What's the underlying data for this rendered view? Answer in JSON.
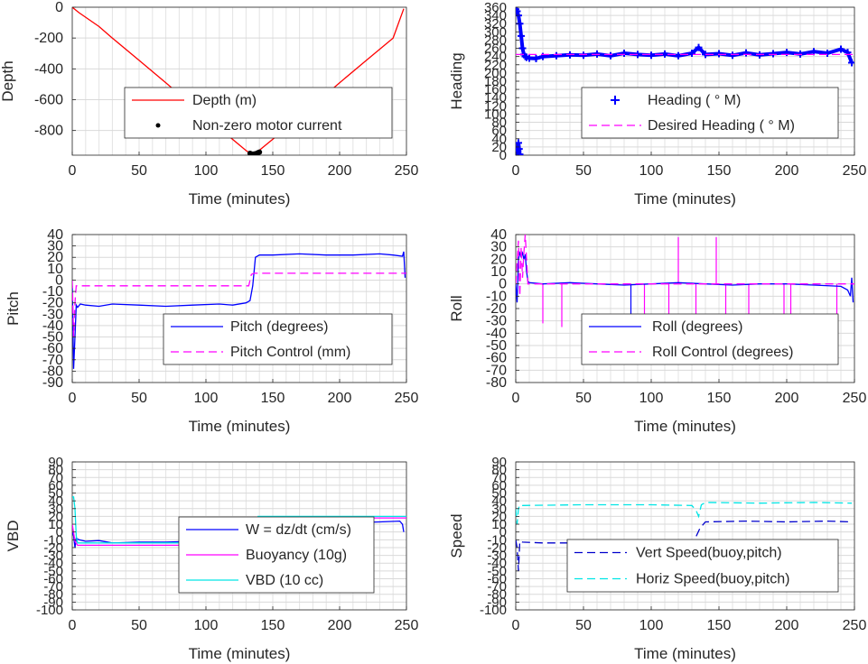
{
  "xlabel": "Time (minutes)",
  "chart_data": [
    {
      "id": "depth",
      "type": "line",
      "ylabel": "Depth",
      "xlim": [
        0,
        250
      ],
      "ylim": [
        -960,
        0
      ],
      "xticks": [
        "0",
        "50",
        "100",
        "150",
        "200",
        "250"
      ],
      "yticks": [
        "0",
        "-200",
        "-400",
        "-600",
        "-800"
      ],
      "ytick_values": [
        0,
        -200,
        -400,
        -600,
        -800
      ],
      "grid": true,
      "legend_position": "bottom-center",
      "series": [
        {
          "name": "Depth (m)",
          "kind": "line",
          "color": "#ff0000",
          "x": [
            0,
            5,
            10,
            20,
            30,
            50,
            70,
            90,
            110,
            130,
            134,
            137,
            140,
            160,
            180,
            200,
            220,
            240,
            248
          ],
          "y": [
            0,
            -35,
            -65,
            -125,
            -200,
            -345,
            -490,
            -640,
            -785,
            -930,
            -952,
            -950,
            -928,
            -785,
            -640,
            -490,
            -345,
            -200,
            -10
          ]
        },
        {
          "name": "Non-zero motor current",
          "kind": "dots",
          "color": "#000000",
          "x": [
            133,
            134,
            135,
            136,
            137,
            138,
            139,
            140
          ],
          "y": [
            -948,
            -952,
            -954,
            -953,
            -951,
            -948,
            -944,
            -940
          ]
        }
      ]
    },
    {
      "id": "heading",
      "type": "line",
      "ylabel": "Heading",
      "xlim": [
        0,
        250
      ],
      "ylim": [
        0,
        360
      ],
      "xticks": [
        "0",
        "50",
        "100",
        "150",
        "200",
        "250"
      ],
      "yticks": [
        "0",
        "20",
        "40",
        "60",
        "80",
        "100",
        "120",
        "140",
        "160",
        "180",
        "200",
        "220",
        "240",
        "260",
        "280",
        "300",
        "320",
        "340",
        "360"
      ],
      "ytick_values": [
        0,
        20,
        40,
        60,
        80,
        100,
        120,
        140,
        160,
        180,
        200,
        220,
        240,
        260,
        280,
        300,
        320,
        340,
        360
      ],
      "grid": true,
      "legend_position": "bottom-right",
      "series": [
        {
          "name": "Heading (  ° M)",
          "kind": "plus",
          "color": "#0000ff",
          "x": [
            0,
            1,
            2,
            3,
            4,
            5,
            6,
            7,
            8,
            10,
            15,
            20,
            30,
            40,
            50,
            60,
            70,
            80,
            90,
            100,
            110,
            120,
            130,
            135,
            140,
            150,
            160,
            170,
            180,
            190,
            200,
            210,
            220,
            230,
            240,
            245,
            248
          ],
          "y": [
            355,
            350,
            340,
            320,
            290,
            260,
            245,
            240,
            238,
            236,
            235,
            240,
            242,
            244,
            243,
            246,
            242,
            248,
            245,
            243,
            246,
            242,
            248,
            262,
            245,
            247,
            243,
            249,
            244,
            247,
            250,
            246,
            252,
            248,
            258,
            250,
            225
          ]
        },
        {
          "name": "Heading (  ° M)",
          "kind": "plus",
          "color": "#0000ff",
          "x": [
            0.5,
            1,
            1.5,
            2,
            2.5,
            3
          ],
          "y": [
            5,
            20,
            10,
            30,
            15,
            2
          ]
        },
        {
          "name": "Desired Heading (   ° M)",
          "kind": "dashed",
          "color": "#ff00ff",
          "x": [
            0,
            250
          ],
          "y": [
            245,
            245
          ]
        }
      ]
    },
    {
      "id": "pitch",
      "type": "line",
      "ylabel": "Pitch",
      "xlim": [
        0,
        250
      ],
      "ylim": [
        -90,
        40
      ],
      "xticks": [
        "0",
        "50",
        "100",
        "150",
        "200",
        "250"
      ],
      "yticks": [
        "40",
        "30",
        "20",
        "10",
        "0",
        "-10",
        "-20",
        "-30",
        "-40",
        "-50",
        "-60",
        "-70",
        "-80",
        "-90"
      ],
      "ytick_values": [
        40,
        30,
        20,
        10,
        0,
        -10,
        -20,
        -30,
        -40,
        -50,
        -60,
        -70,
        -80,
        -90
      ],
      "grid": true,
      "legend_position": "bottom-right",
      "series": [
        {
          "name": "Pitch (degrees)",
          "kind": "line",
          "color": "#0000ff",
          "x": [
            0,
            1,
            2,
            3,
            4,
            6,
            10,
            20,
            30,
            50,
            70,
            90,
            110,
            120,
            130,
            133,
            135,
            137,
            140,
            150,
            170,
            190,
            210,
            230,
            240,
            247,
            248,
            249
          ],
          "y": [
            -5,
            -78,
            -50,
            -22,
            -24,
            -21,
            -22,
            -23,
            -21,
            -22,
            -23,
            -22,
            -21,
            -22,
            -20,
            -18,
            -5,
            20,
            22,
            22,
            23,
            22,
            22,
            23,
            22,
            21,
            25,
            2
          ]
        },
        {
          "name": "Pitch Control (mm)",
          "kind": "dashed",
          "color": "#ff00ff",
          "x": [
            0,
            1,
            2,
            3,
            5,
            130,
            132,
            134,
            136,
            250
          ],
          "y": [
            0,
            -50,
            -20,
            -5,
            -5,
            -5,
            -5,
            5,
            6,
            6
          ]
        }
      ]
    },
    {
      "id": "roll",
      "type": "line",
      "ylabel": "Roll",
      "xlim": [
        0,
        250
      ],
      "ylim": [
        -80,
        40
      ],
      "xticks": [
        "0",
        "50",
        "100",
        "150",
        "200",
        "250"
      ],
      "yticks": [
        "40",
        "30",
        "20",
        "10",
        "0",
        "-10",
        "-20",
        "-30",
        "-40",
        "-50",
        "-60",
        "-70",
        "-80"
      ],
      "ytick_values": [
        40,
        30,
        20,
        10,
        0,
        -10,
        -20,
        -30,
        -40,
        -50,
        -60,
        -70,
        -80
      ],
      "grid": true,
      "legend_position": "bottom-right",
      "series": [
        {
          "name": "Roll (degrees)",
          "kind": "line",
          "color": "#0000ff",
          "x": [
            0,
            1,
            2,
            3,
            4,
            5,
            6,
            7,
            8,
            9,
            10,
            20,
            40,
            60,
            80,
            100,
            120,
            140,
            160,
            180,
            200,
            220,
            240,
            245,
            247,
            248,
            249
          ],
          "y": [
            0,
            -15,
            20,
            25,
            22,
            25,
            20,
            24,
            10,
            2,
            1,
            0,
            1,
            0,
            -1,
            0,
            1,
            0,
            -1,
            0,
            0,
            -1,
            -2,
            -5,
            -10,
            5,
            -15
          ]
        },
        {
          "name": "Roll Control (degrees)",
          "kind": "dashed",
          "color": "#ff00ff",
          "x": [
            0,
            2,
            3,
            4,
            5,
            6,
            7,
            8,
            9,
            10,
            250
          ],
          "y": [
            0,
            35,
            -10,
            30,
            5,
            25,
            40,
            20,
            0,
            0,
            0
          ]
        }
      ],
      "spikes": [
        {
          "color": "#ff00ff",
          "x": [
            20,
            34,
            95,
            113,
            133,
            155,
            172,
            198,
            203,
            237
          ],
          "y": [
            -32,
            -35,
            -35,
            -35,
            -33,
            -30,
            -30,
            -32,
            -32,
            -30
          ]
        },
        {
          "color": "#0000ff",
          "x": [
            85
          ],
          "y": [
            -30
          ]
        },
        {
          "color": "#ff00ff",
          "x": [
            120,
            148
          ],
          "y": [
            38,
            38
          ]
        }
      ]
    },
    {
      "id": "vbd",
      "type": "line",
      "ylabel": "VBD",
      "xlim": [
        0,
        250
      ],
      "ylim": [
        -100,
        90
      ],
      "xticks": [
        "0",
        "50",
        "100",
        "150",
        "200",
        "250"
      ],
      "yticks": [
        "90",
        "80",
        "70",
        "60",
        "50",
        "40",
        "30",
        "20",
        "10",
        "0",
        "-10",
        "-20",
        "-30",
        "-40",
        "-50",
        "-60",
        "-70",
        "-80",
        "-90",
        "-100"
      ],
      "ytick_values": [
        90,
        80,
        70,
        60,
        50,
        40,
        30,
        20,
        10,
        0,
        -10,
        -20,
        -30,
        -40,
        -50,
        -60,
        -70,
        -80,
        -90,
        -100
      ],
      "grid": true,
      "legend_position": "bottom-right",
      "series": [
        {
          "name": "W = dz/dt (cm/s)",
          "kind": "line",
          "color": "#0000ff",
          "x": [
            0,
            1,
            2,
            3,
            5,
            10,
            20,
            30,
            50,
            70,
            90,
            110,
            130,
            133,
            136,
            138,
            140,
            150,
            170,
            190,
            210,
            230,
            245,
            247,
            248
          ],
          "y": [
            0,
            -5,
            -20,
            -8,
            -10,
            -12,
            -11,
            -14,
            -13,
            -13,
            -12,
            -15,
            -13,
            -10,
            3,
            11,
            12,
            13,
            12,
            13,
            12,
            13,
            14,
            10,
            0
          ]
        },
        {
          "name": "Buoyancy (10g)",
          "kind": "line",
          "color": "#ff00ff",
          "x": [
            0,
            2,
            4,
            134,
            136,
            139,
            250
          ],
          "y": [
            10,
            -12,
            -17,
            -17,
            5,
            18,
            18
          ]
        },
        {
          "name": "VBD (10 cc)",
          "kind": "line",
          "color": "#00e5e5",
          "x": [
            0,
            1,
            2,
            3,
            4,
            134,
            136,
            139,
            250
          ],
          "y": [
            45,
            45,
            30,
            -5,
            -14,
            -14,
            5,
            20,
            20
          ]
        }
      ]
    },
    {
      "id": "speed",
      "type": "line",
      "ylabel": "Speed",
      "xlim": [
        0,
        250
      ],
      "ylim": [
        -100,
        90
      ],
      "xticks": [
        "0",
        "50",
        "100",
        "150",
        "200",
        "250"
      ],
      "yticks": [
        "90",
        "80",
        "70",
        "60",
        "50",
        "40",
        "30",
        "20",
        "10",
        "0",
        "-10",
        "-20",
        "-30",
        "-40",
        "-50",
        "-60",
        "-70",
        "-80",
        "-90",
        "-100"
      ],
      "ytick_values": [
        90,
        80,
        70,
        60,
        50,
        40,
        30,
        20,
        10,
        0,
        -10,
        -20,
        -30,
        -40,
        -50,
        -60,
        -70,
        -80,
        -90,
        -100
      ],
      "grid": true,
      "legend_position": "bottom-right",
      "series": [
        {
          "name": "Vert Speed(buoy,pitch)",
          "kind": "dashed",
          "color": "#0000cc",
          "x": [
            0,
            1,
            2,
            3,
            5,
            20,
            50,
            80,
            110,
            125,
            130,
            132,
            136,
            140,
            170,
            200,
            230,
            248
          ],
          "y": [
            -10,
            -20,
            -50,
            -12,
            -13,
            -14,
            -14,
            -13,
            -14,
            -13,
            -12,
            -10,
            5,
            13,
            14,
            13,
            14,
            13
          ]
        },
        {
          "name": "Horiz Speed(buoy,pitch)",
          "kind": "dashed",
          "color": "#00e5e5",
          "x": [
            0,
            1,
            2,
            3,
            5,
            50,
            100,
            130,
            133,
            135,
            137,
            140,
            180,
            220,
            248
          ],
          "y": [
            30,
            10,
            30,
            35,
            34,
            35,
            35,
            34,
            28,
            20,
            35,
            38,
            37,
            38,
            37
          ]
        }
      ]
    }
  ]
}
